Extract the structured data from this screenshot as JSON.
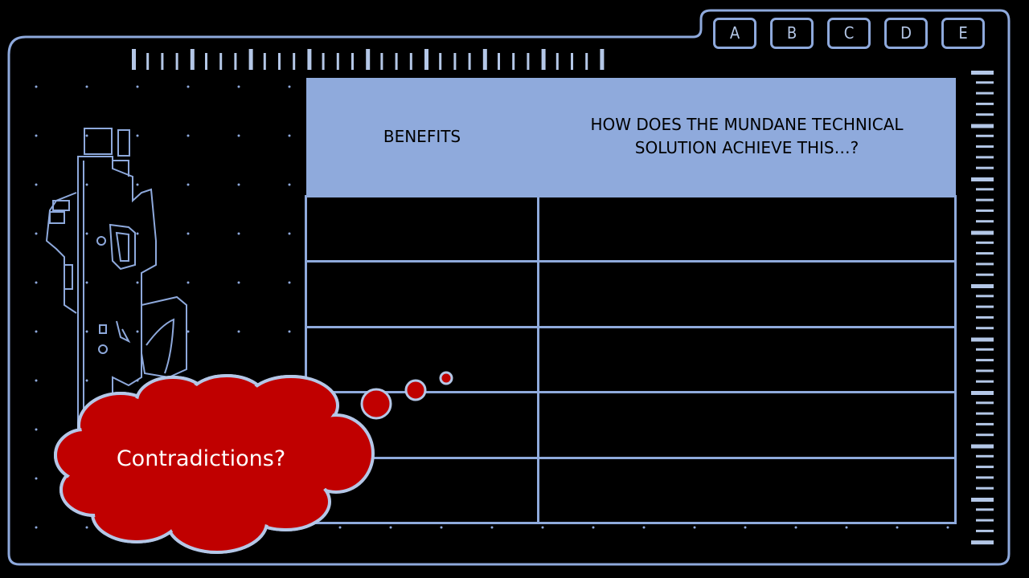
{
  "nav_tabs": [
    {
      "label": "A"
    },
    {
      "label": "B"
    },
    {
      "label": "C"
    },
    {
      "label": "D"
    },
    {
      "label": "E"
    }
  ],
  "table": {
    "headers": [
      "BENEFITS",
      "HOW DOES THE MUNDANE TECHNICAL SOLUTION ACHIEVE THIS…?"
    ],
    "rows": [
      [
        "",
        ""
      ],
      [
        "",
        ""
      ],
      [
        "",
        ""
      ],
      [
        "",
        ""
      ],
      [
        "",
        ""
      ]
    ]
  },
  "thought_bubble": {
    "text": "Contradictions?"
  },
  "colors": {
    "frame": "#8ea9dc",
    "header_fill": "#8faadc",
    "bubble_fill": "#c00000",
    "background": "#000000"
  },
  "icons": [
    "device-schematic-icon",
    "ruler-scale",
    "vertical-scale"
  ]
}
